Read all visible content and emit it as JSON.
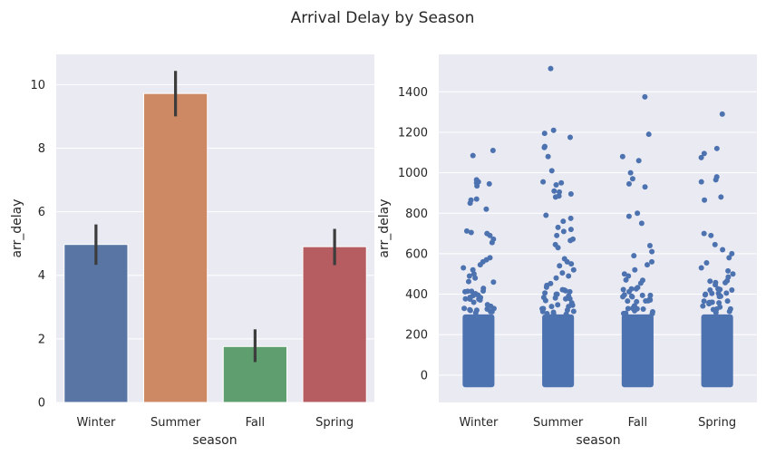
{
  "figure": {
    "suptitle": "Arrival Delay by Season",
    "background": "#ffffff",
    "axes_facecolor": "#eaeaf2",
    "grid_color": "#ffffff"
  },
  "chart_data": [
    {
      "type": "bar",
      "xlabel": "season",
      "ylabel": "arr_delay",
      "categories": [
        "Winter",
        "Summer",
        "Fall",
        "Spring"
      ],
      "values": [
        4.97,
        9.72,
        1.76,
        4.9
      ],
      "error_low": [
        4.33,
        9.0,
        1.27,
        4.32
      ],
      "error_high": [
        5.6,
        10.43,
        2.3,
        5.46
      ],
      "colors": [
        "#5875a4",
        "#cc8963",
        "#5f9e6e",
        "#b55d60"
      ],
      "error_color": "#3c3c3c",
      "ylim": [
        0,
        10.95
      ],
      "yticks": [
        0,
        2,
        4,
        6,
        8,
        10
      ],
      "grid": true
    },
    {
      "type": "scatter",
      "subtype": "strip",
      "xlabel": "season",
      "ylabel": "arr_delay",
      "categories": [
        "Winter",
        "Summer",
        "Fall",
        "Spring"
      ],
      "point_color": "#4c72b0",
      "ylim": [
        -135,
        1585
      ],
      "yticks": [
        0,
        200,
        400,
        600,
        800,
        1000,
        1200,
        1400
      ],
      "grid": true,
      "dense_range": [
        -60,
        300
      ],
      "outliers": {
        "Winter": [
          1110,
          1085,
          965,
          955,
          950,
          945,
          935,
          870,
          865,
          850,
          820,
          712,
          705,
          700,
          690,
          672,
          655,
          580,
          570,
          560,
          545,
          530,
          520,
          500,
          490,
          480
        ],
        "Summer": [
          1515,
          1210,
          1195,
          1175,
          1130,
          1125,
          1080,
          1010,
          955,
          950,
          940,
          910,
          905,
          895,
          885,
          880,
          790,
          775,
          760,
          730,
          720,
          710,
          690,
          672,
          665,
          645,
          630,
          575,
          560,
          550,
          540,
          520,
          505,
          490,
          480
        ],
        "Fall": [
          1375,
          1190,
          1080,
          1060,
          1000,
          970,
          945,
          930,
          800,
          785,
          750,
          640,
          610,
          590,
          560,
          545,
          520,
          500,
          490,
          470
        ],
        "Spring": [
          1290,
          1120,
          1095,
          1075,
          980,
          965,
          955,
          880,
          865,
          700,
          690,
          645,
          620,
          600,
          580,
          555,
          530,
          515,
          500,
          485
        ]
      }
    }
  ]
}
